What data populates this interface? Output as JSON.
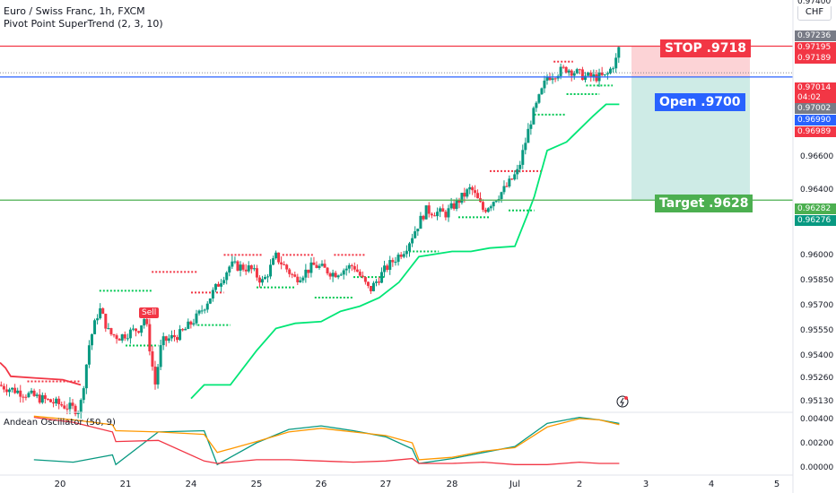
{
  "header": {
    "symbol_line": "Euro / Swiss Franc, 1h, FXCM",
    "indicator_line": "Pivot Point SuperTrend (2, 3, 10)",
    "oscillator_label": "Andean Oscillator (50, 9)"
  },
  "currency_button": "CHF",
  "annotations": {
    "stop": "STOP .9718",
    "open": "Open .9700",
    "target": "Target .9628",
    "sell_signal": "Sell"
  },
  "price_tags": {
    "top_partial": "0.97400",
    "high": "0.97236",
    "p1": "0.97195",
    "stop": "0.97189",
    "last": "0.97014",
    "countdown": "04:02",
    "prev": "0.97002",
    "open": "0.96990",
    "bid": "0.96989",
    "target": "0.96282",
    "low": "0.96276"
  },
  "colors": {
    "up": "#089981",
    "down": "#f23645",
    "stop": "#f23645",
    "open": "#2962ff",
    "target": "#4caf50",
    "supertrend": "#00e676",
    "accent": "#131722"
  },
  "chart_data": [
    {
      "type": "candlestick",
      "title": "Euro / Swiss Franc, 1h, FXCM",
      "x_tick_labels": [
        "20",
        "21",
        "24",
        "25",
        "26",
        "27",
        "28",
        "Jul",
        "2",
        "3",
        "4",
        "5"
      ],
      "y_tick_labels": [
        "0.95130",
        "0.95260",
        "0.95400",
        "0.95550",
        "0.95700",
        "0.95850",
        "0.96000",
        "0.96400",
        "0.96600"
      ],
      "ylim": [
        0.9505,
        0.9745
      ],
      "series": [
        {
          "name": "Pivot Point SuperTrend (2, 3, 10)",
          "x": [
            0,
            0.25,
            0.5,
            1,
            1.5,
            1.8,
            2,
            2.2,
            2.6,
            3,
            3.3,
            3.6,
            4,
            4.3,
            4.6,
            4.9,
            5.2,
            5.5,
            6,
            6.3,
            6.6,
            7,
            7.2,
            7.3,
            7.5,
            7.8,
            8.2,
            8.4,
            8.6
          ],
          "values": [
            0.953,
            0.9525,
            0.9524,
            0.9522,
            0.9517,
            0.951,
            0.9512,
            0.952,
            0.952,
            0.954,
            0.9553,
            0.9556,
            0.9557,
            0.9563,
            0.9566,
            0.9571,
            0.958,
            0.9595,
            0.9598,
            0.9598,
            0.96,
            0.9601,
            0.962,
            0.963,
            0.9657,
            0.9662,
            0.9677,
            0.9684,
            0.9684
          ]
        }
      ],
      "levels": {
        "stop": 0.9718,
        "open": 0.97,
        "target": 0.9628,
        "last": 0.97014
      },
      "grid": false,
      "legend": "top-left"
    },
    {
      "type": "line",
      "title": "Andean Oscillator (50, 9)",
      "y_tick_labels": [
        "0.00400",
        "0.00200",
        "0.00000"
      ],
      "ylim": [
        0,
        0.0042
      ],
      "x": [
        -0.4,
        0.2,
        0.8,
        0.85,
        1.5,
        2.2,
        2.4,
        3,
        3.5,
        4,
        4.5,
        5,
        5.4,
        5.5,
        6,
        6.5,
        7,
        7.5,
        8,
        8.3,
        8.6
      ],
      "series": [
        {
          "name": "Bull",
          "color": "#089981",
          "values": [
            0.0006,
            0.0004,
            0.001,
            0.0002,
            0.0029,
            0.003,
            0.0002,
            0.002,
            0.0031,
            0.0034,
            0.003,
            0.0025,
            0.0015,
            0.0003,
            0.0007,
            0.0012,
            0.0017,
            0.0036,
            0.0041,
            0.0039,
            0.0036
          ]
        },
        {
          "name": "Bear",
          "color": "#f23645",
          "values": [
            0.0041,
            0.0037,
            0.0029,
            0.0021,
            0.0022,
            0.0005,
            0.0003,
            0.0006,
            0.0006,
            0.0005,
            0.0004,
            0.0005,
            0.0007,
            0.0003,
            0.0003,
            0.0004,
            0.0002,
            0.0002,
            0.0004,
            0.0003,
            0.0003
          ]
        },
        {
          "name": "Signal",
          "color": "#ff9800",
          "values": [
            0.0042,
            0.0039,
            0.0035,
            0.003,
            0.0029,
            0.0027,
            0.0012,
            0.0021,
            0.0029,
            0.0032,
            0.0029,
            0.0026,
            0.002,
            0.0006,
            0.0008,
            0.0013,
            0.0016,
            0.0033,
            0.004,
            0.0039,
            0.0035
          ]
        }
      ]
    }
  ]
}
